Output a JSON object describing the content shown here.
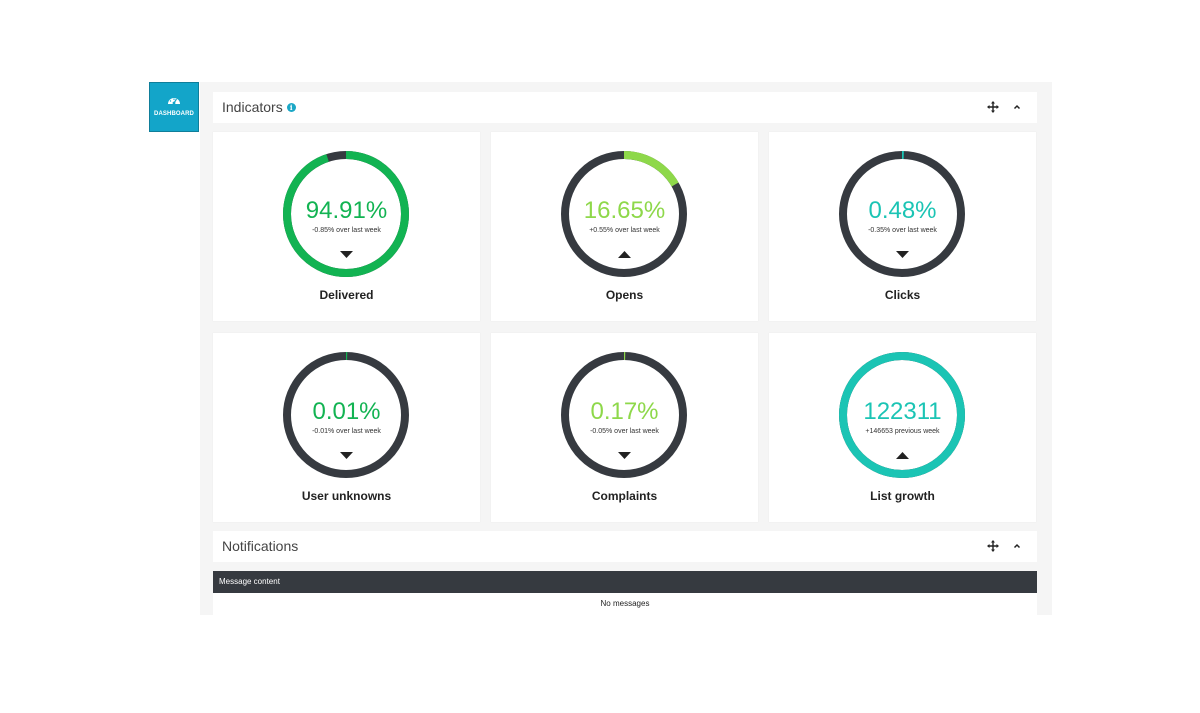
{
  "sidebar": {
    "dashboard_label": "DASHBOARD",
    "icon": "gauge-icon"
  },
  "indicators": {
    "title": "Indicators",
    "cards": [
      {
        "name": "delivered",
        "value": "94.91%",
        "delta": "-0.85% over last week",
        "label": "Delivered",
        "fraction": 0.9491,
        "color": "#12b352",
        "text_color": "#12b352",
        "trend": "down"
      },
      {
        "name": "opens",
        "value": "16.65%",
        "delta": "+0.55% over last week",
        "label": "Opens",
        "fraction": 0.1665,
        "color": "#8ed84a",
        "text_color": "#8ed84a",
        "trend": "up"
      },
      {
        "name": "clicks",
        "value": "0.48%",
        "delta": "-0.35% over last week",
        "label": "Clicks",
        "fraction": 0.0048,
        "color": "#1bc4b4",
        "text_color": "#1bc4b4",
        "trend": "down"
      },
      {
        "name": "user-unknowns",
        "value": "0.01%",
        "delta": "-0.01% over last week",
        "label": "User unknowns",
        "fraction": 0.0001,
        "color": "#12b352",
        "text_color": "#12b352",
        "trend": "down"
      },
      {
        "name": "complaints",
        "value": "0.17%",
        "delta": "-0.05% over last week",
        "label": "Complaints",
        "fraction": 0.0017,
        "color": "#8ed84a",
        "text_color": "#8ed84a",
        "trend": "down"
      },
      {
        "name": "list-growth",
        "value": "122311",
        "delta": "+146653 previous week",
        "label": "List growth",
        "fraction": 1.0,
        "color": "#1bc4b4",
        "text_color": "#1bc4b4",
        "trend": "up"
      }
    ]
  },
  "notifications": {
    "title": "Notifications",
    "column_header": "Message content",
    "empty_text": "No messages"
  },
  "colors": {
    "ring_track": "#363a40",
    "accent": "#13a5c9"
  }
}
